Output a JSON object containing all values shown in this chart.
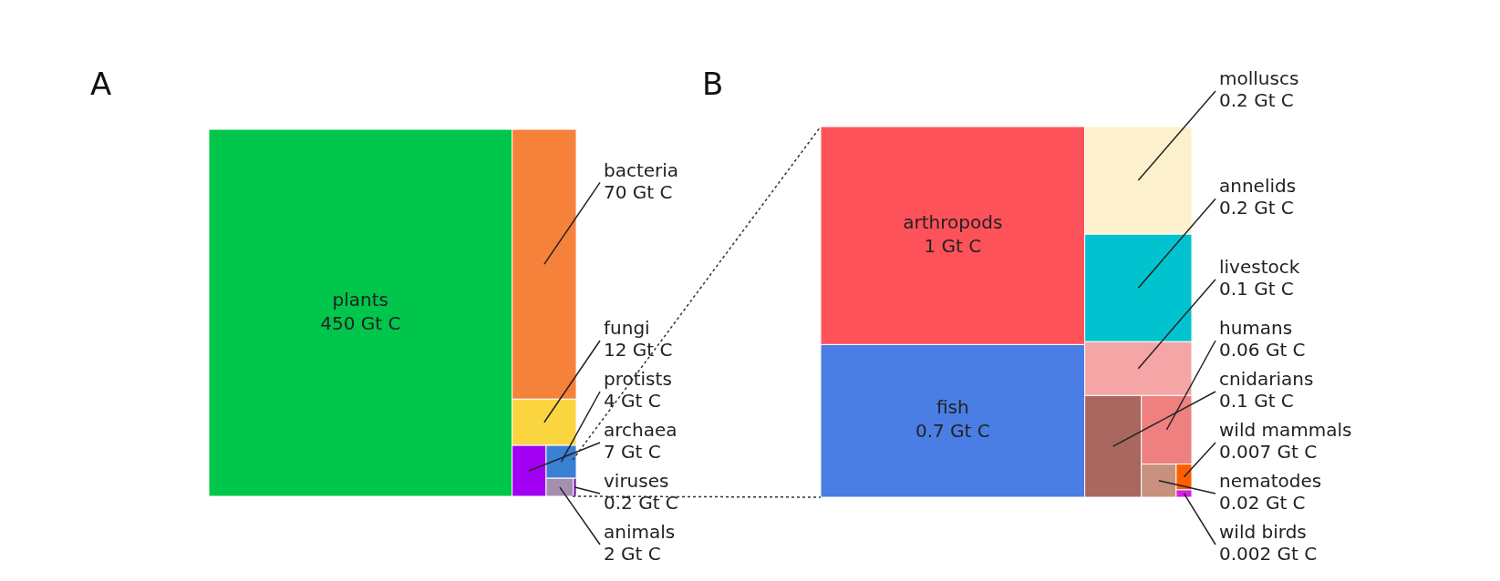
{
  "chart_data": [
    {
      "type": "other",
      "title": "A",
      "categories": [
        "plants",
        "bacteria",
        "fungi",
        "archaea",
        "protists",
        "animals",
        "viruses"
      ],
      "values": [
        450,
        70,
        12,
        7,
        4,
        2,
        0.2
      ],
      "value_labels": [
        "450 Gt C",
        "70 Gt C",
        "12 Gt C",
        "7 Gt C",
        "4 Gt C",
        "2 Gt C",
        "0.2 Gt C"
      ],
      "colors": [
        "#00c64c",
        "#f6813b",
        "#fbd540",
        "#a100f2",
        "#3a80d4",
        "#a58fb0",
        "#6a00b0"
      ]
    },
    {
      "type": "other",
      "title": "B",
      "categories": [
        "arthropods",
        "fish",
        "molluscs",
        "annelids",
        "livestock",
        "cnidarians",
        "humans",
        "nematodes",
        "wild mammals",
        "wild birds"
      ],
      "values": [
        1,
        0.7,
        0.2,
        0.2,
        0.1,
        0.1,
        0.06,
        0.02,
        0.007,
        0.002
      ],
      "value_labels": [
        "1 Gt C",
        "0.7 Gt C",
        "0.2 Gt C",
        "0.2 Gt C",
        "0.1 Gt C",
        "0.1 Gt C",
        "0.06 Gt C",
        "0.02 Gt C",
        "0.007 Gt C",
        "0.002 Gt C"
      ],
      "colors": [
        "#fe525a",
        "#4a7ee4",
        "#fdf0cc",
        "#00c3cf",
        "#f5a5a5",
        "#a86860",
        "#ee8080",
        "#c8907e",
        "#ff5e00",
        "#d020e0"
      ]
    }
  ]
}
